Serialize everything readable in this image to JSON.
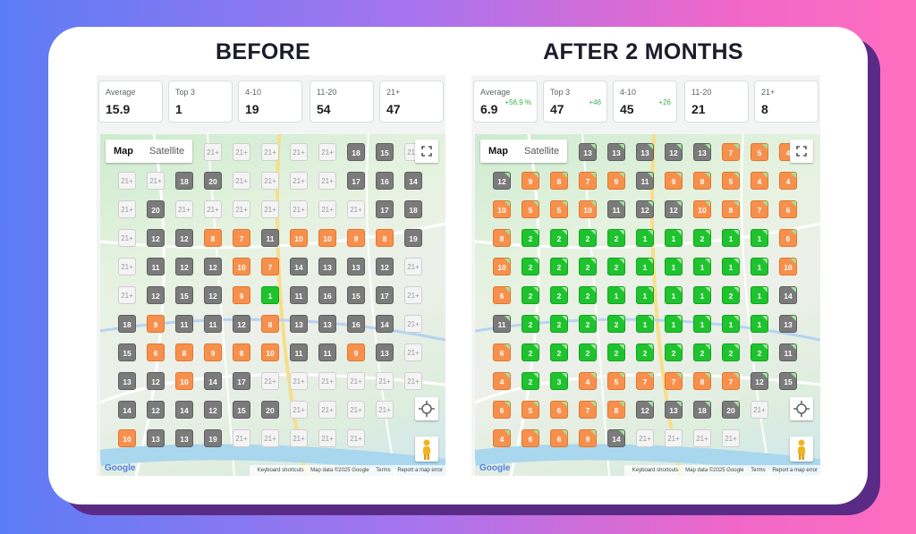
{
  "panels": [
    {
      "title": "BEFORE",
      "stats": [
        {
          "label": "Average",
          "value": "15.9",
          "delta": ""
        },
        {
          "label": "Top 3",
          "value": "1",
          "delta": ""
        },
        {
          "label": "4-10",
          "value": "19",
          "delta": ""
        },
        {
          "label": "11-20",
          "value": "54",
          "delta": ""
        },
        {
          "label": "21+",
          "value": "47",
          "delta": ""
        }
      ],
      "map": {
        "map_label": "Map",
        "satellite_label": "Satellite",
        "google": "Google",
        "keyboard": "Keyboard shortcuts",
        "mapdata": "Map data ©2025 Google",
        "terms": "Terms",
        "report": "Report a map error"
      },
      "grid": [
        [
          "",
          "",
          "",
          "21+",
          "21+",
          "21+",
          "21+",
          "21+",
          "18",
          "15",
          "21+"
        ],
        [
          "21+",
          "21+",
          "18",
          "20",
          "21+",
          "21+",
          "21+",
          "21+",
          "17",
          "16",
          "14"
        ],
        [
          "21+",
          "20",
          "21+",
          "21+",
          "21+",
          "21+",
          "21+",
          "21+",
          "21+",
          "17",
          "18"
        ],
        [
          "21+",
          "12",
          "12",
          "8",
          "7",
          "11",
          "10",
          "10",
          "9",
          "8",
          "19"
        ],
        [
          "21+",
          "11",
          "12",
          "12",
          "10",
          "7",
          "14",
          "13",
          "13",
          "12",
          "21+"
        ],
        [
          "21+",
          "12",
          "15",
          "12",
          "9",
          "1",
          "11",
          "16",
          "15",
          "17",
          "21+"
        ],
        [
          "18",
          "9",
          "11",
          "11",
          "12",
          "8",
          "13",
          "13",
          "16",
          "14",
          "21+"
        ],
        [
          "15",
          "6",
          "8",
          "9",
          "8",
          "10",
          "11",
          "11",
          "9",
          "13",
          "21+"
        ],
        [
          "13",
          "12",
          "10",
          "14",
          "17",
          "21+",
          "21+",
          "21+",
          "21+",
          "21+",
          "21+"
        ],
        [
          "14",
          "12",
          "14",
          "12",
          "15",
          "20",
          "21+",
          "21+",
          "21+",
          "21+",
          ""
        ],
        [
          "10",
          "13",
          "13",
          "19",
          "21+",
          "21+",
          "21+",
          "21+",
          "21+",
          "",
          ""
        ]
      ]
    },
    {
      "title": "AFTER 2 MONTHS",
      "stats": [
        {
          "label": "Average",
          "value": "6.9",
          "delta": "+56.9 %"
        },
        {
          "label": "Top 3",
          "value": "47",
          "delta": "+46"
        },
        {
          "label": "4-10",
          "value": "45",
          "delta": "+26"
        },
        {
          "label": "11-20",
          "value": "21",
          "delta": ""
        },
        {
          "label": "21+",
          "value": "8",
          "delta": ""
        }
      ],
      "map": {
        "map_label": "Map",
        "satellite_label": "Satellite",
        "google": "Google",
        "keyboard": "Keyboard shortcuts",
        "mapdata": "Map data ©2025 Google",
        "terms": "Terms",
        "report": "Report a map error"
      },
      "grid": [
        [
          "",
          "",
          "",
          "13",
          "13",
          "13",
          "12",
          "13",
          "7",
          "5",
          "4"
        ],
        [
          "12",
          "9",
          "8",
          "7",
          "9",
          "11",
          "9",
          "8",
          "5",
          "4",
          "4"
        ],
        [
          "10",
          "5",
          "5",
          "10",
          "11",
          "12",
          "12",
          "10",
          "8",
          "7",
          "6"
        ],
        [
          "8",
          "2",
          "2",
          "2",
          "2",
          "1",
          "1",
          "2",
          "1",
          "1",
          "6"
        ],
        [
          "10",
          "2",
          "2",
          "2",
          "2",
          "1",
          "1",
          "1",
          "1",
          "1",
          "10"
        ],
        [
          "6",
          "2",
          "2",
          "2",
          "1",
          "1",
          "1",
          "1",
          "2",
          "1",
          "14"
        ],
        [
          "11",
          "2",
          "2",
          "2",
          "2",
          "1",
          "1",
          "1",
          "1",
          "1",
          "13"
        ],
        [
          "6",
          "2",
          "2",
          "2",
          "2",
          "2",
          "2",
          "2",
          "2",
          "2",
          "11"
        ],
        [
          "4",
          "2",
          "3",
          "4",
          "5",
          "7",
          "7",
          "8",
          "7",
          "12",
          "15"
        ],
        [
          "6",
          "5",
          "6",
          "7",
          "8",
          "12",
          "13",
          "18",
          "20",
          "21+",
          ""
        ],
        [
          "4",
          "6",
          "6",
          "9",
          "14",
          "21+",
          "21+",
          "21+",
          "21+",
          "",
          ""
        ]
      ]
    }
  ]
}
